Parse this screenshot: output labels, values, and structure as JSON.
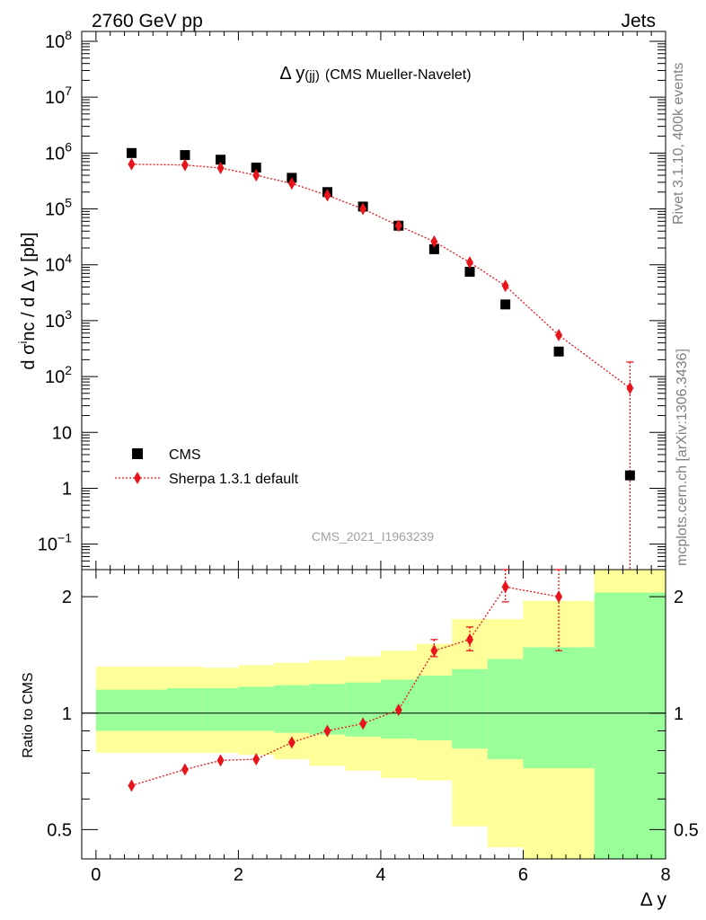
{
  "header": {
    "left": "2760 GeV pp",
    "right": "Jets"
  },
  "side_texts": {
    "rivet": "Rivet 3.1.10,  400k events",
    "mcplots": "mcplots.cern.ch [arXiv:1306.3436]"
  },
  "chart_data": [
    {
      "type": "scatter",
      "panel": "main",
      "title_main": "Δ y",
      "title_sub": "(jj)",
      "title_rest": "(CMS Mueller-Navelet)",
      "ylabel": "d σ^inc / d Δ y [pb]",
      "xlabel": "",
      "xlim": [
        -0.2,
        8.0
      ],
      "ylim": [
        0.035,
        150000000
      ],
      "log_y": true,
      "analysis_id": "CMS_2021_I1963239",
      "legend_position": "bottom-left",
      "yticks": [
        {
          "v": 0.1,
          "m": "10",
          "e": "−1"
        },
        {
          "v": 1,
          "m": "1",
          "e": ""
        },
        {
          "v": 10,
          "m": "10",
          "e": ""
        },
        {
          "v": 100,
          "m": "10",
          "e": "2"
        },
        {
          "v": 1000,
          "m": "10",
          "e": "3"
        },
        {
          "v": 10000,
          "m": "10",
          "e": "4"
        },
        {
          "v": 100000,
          "m": "10",
          "e": "5"
        },
        {
          "v": 1000000,
          "m": "10",
          "e": "6"
        },
        {
          "v": 10000000,
          "m": "10",
          "e": "7"
        },
        {
          "v": 100000000,
          "m": "10",
          "e": "8"
        }
      ],
      "series": [
        {
          "name": "CMS",
          "style": "square",
          "color": "#000000",
          "x": [
            0.5,
            1.25,
            1.75,
            2.25,
            2.75,
            3.25,
            3.75,
            4.25,
            4.75,
            5.25,
            5.75,
            6.5,
            7.5
          ],
          "y": [
            1000000,
            920000,
            760000,
            550000,
            360000,
            200000,
            110000,
            50000,
            19000,
            7500,
            1950,
            280,
            1.7
          ]
        },
        {
          "name": "Sherpa 1.3.1 default",
          "style": "diamond-dotted",
          "color": "#e8141c",
          "x": [
            0.5,
            1.25,
            1.75,
            2.25,
            2.75,
            3.25,
            3.75,
            4.25,
            4.75,
            5.25,
            5.75,
            6.5,
            7.5
          ],
          "y": [
            630000,
            610000,
            540000,
            400000,
            285000,
            175000,
            100000,
            50000,
            26000,
            11000,
            4200,
            550,
            62
          ],
          "yerr_up": [
            0,
            0,
            0,
            0,
            0,
            0,
            0,
            0,
            0,
            0,
            0,
            0,
            120
          ],
          "yerr_down": [
            0,
            0,
            0,
            0,
            0,
            0,
            0,
            0,
            0,
            0,
            0,
            0,
            0.03
          ]
        }
      ]
    },
    {
      "type": "scatter",
      "panel": "ratio",
      "xlabel": "Δ y",
      "ylabel": "Ratio to CMS",
      "xlim": [
        -0.2,
        8.0
      ],
      "ylim": [
        0.42,
        2.35
      ],
      "log_y": true,
      "xticks": [
        0,
        2,
        4,
        6,
        8
      ],
      "yticks": [
        0.5,
        1,
        2
      ],
      "band_edges": [
        0,
        1,
        1.5,
        2,
        2.5,
        3,
        3.5,
        4,
        4.5,
        5,
        5.5,
        6,
        7,
        8
      ],
      "band_inner": {
        "color": "#99ff99",
        "lo": [
          0.9,
          0.9,
          0.9,
          0.9,
          0.89,
          0.88,
          0.87,
          0.86,
          0.85,
          0.81,
          0.76,
          0.72,
          0.4
        ],
        "hi": [
          1.15,
          1.16,
          1.16,
          1.17,
          1.18,
          1.19,
          1.2,
          1.22,
          1.25,
          1.3,
          1.38,
          1.48,
          2.05
        ]
      },
      "band_outer": {
        "color": "#ffff99",
        "lo": [
          0.79,
          0.79,
          0.79,
          0.78,
          0.76,
          0.73,
          0.71,
          0.68,
          0.67,
          0.51,
          0.45,
          0.42,
          0.42
        ],
        "hi": [
          1.32,
          1.32,
          1.31,
          1.33,
          1.35,
          1.37,
          1.4,
          1.45,
          1.51,
          1.75,
          1.75,
          1.95,
          2.35
        ]
      },
      "series": [
        {
          "name": "Sherpa 1.3.1 default",
          "color": "#e8141c",
          "x": [
            0.5,
            1.25,
            1.75,
            2.25,
            2.75,
            3.25,
            3.75,
            4.25,
            4.75,
            5.25,
            5.75,
            6.5
          ],
          "y": [
            0.65,
            0.715,
            0.755,
            0.76,
            0.84,
            0.9,
            0.94,
            1.02,
            1.45,
            1.55,
            2.12,
            2.0
          ],
          "yerr_up": [
            0,
            0,
            0,
            0,
            0,
            0,
            0,
            0,
            0.1,
            0.12,
            0.25,
            0.4
          ],
          "yerr_down": [
            0,
            0,
            0,
            0,
            0,
            0,
            0,
            0,
            0.05,
            0.1,
            0.18,
            0.55
          ]
        }
      ]
    }
  ]
}
